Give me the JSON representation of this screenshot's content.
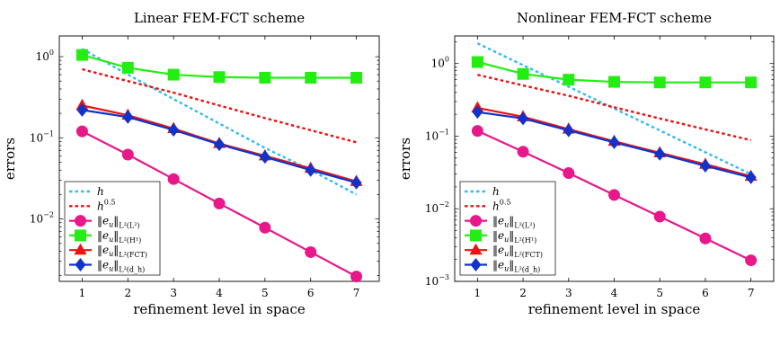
{
  "chart_data": [
    {
      "type": "line",
      "title": "Linear FEM-FCT scheme",
      "xlabel": "refinement level in space",
      "ylabel": "errors",
      "y_scale": "log",
      "xlim": [
        0.5,
        7.5
      ],
      "ylim": [
        0.0017,
        1.8
      ],
      "x_ticks": [
        "1",
        "2",
        "3",
        "4",
        "5",
        "6",
        "7"
      ],
      "y_ticks": [
        {
          "value": 1,
          "mantissa": "10",
          "exp": "0"
        },
        {
          "value": 0.1,
          "mantissa": "10",
          "exp": "−1"
        },
        {
          "value": 0.01,
          "mantissa": "10",
          "exp": "−2"
        }
      ],
      "grid": false,
      "legend_position": "bottom-left",
      "x": [
        1,
        2,
        3,
        4,
        5,
        6,
        7
      ],
      "series": [
        {
          "name": "h",
          "style": "dotted",
          "color": "#33bbee",
          "marker": "none",
          "values": [
            1.25,
            0.6,
            0.3,
            0.15,
            0.075,
            0.04,
            0.02
          ]
        },
        {
          "name": "h^0.5",
          "style": "dotted",
          "color": "#ee1111",
          "marker": "none",
          "values": [
            0.7,
            0.5,
            0.36,
            0.25,
            0.175,
            0.124,
            0.088
          ]
        },
        {
          "name": "‖e_u‖_L²(L²)",
          "style": "solid",
          "color": "#e8178a",
          "marker": "circle",
          "values": [
            0.12,
            0.062,
            0.031,
            0.0155,
            0.0078,
            0.0039,
            0.00195
          ]
        },
        {
          "name": "‖e_u‖_L²(H¹)",
          "style": "solid",
          "color": "#22ee11",
          "marker": "square",
          "values": [
            1.05,
            0.73,
            0.6,
            0.56,
            0.55,
            0.55,
            0.55
          ]
        },
        {
          "name": "‖e_u‖_L²(FCT)",
          "style": "solid",
          "color": "#ee1111",
          "marker": "triangle",
          "values": [
            0.25,
            0.19,
            0.13,
            0.085,
            0.06,
            0.042,
            0.029
          ]
        },
        {
          "name": "‖e_u‖_L²(d_h)",
          "style": "solid",
          "color": "#1133cc",
          "marker": "diamond",
          "values": [
            0.22,
            0.18,
            0.125,
            0.083,
            0.058,
            0.04,
            0.028
          ]
        }
      ]
    },
    {
      "type": "line",
      "title": "Nonlinear FEM-FCT scheme",
      "xlabel": "refinement level in space",
      "ylabel": "errors",
      "y_scale": "log",
      "xlim": [
        0.5,
        7.5
      ],
      "ylim": [
        0.001,
        2.4
      ],
      "x_ticks": [
        "1",
        "2",
        "3",
        "4",
        "5",
        "6",
        "7"
      ],
      "y_ticks": [
        {
          "value": 1,
          "mantissa": "10",
          "exp": "0"
        },
        {
          "value": 0.1,
          "mantissa": "10",
          "exp": "−1"
        },
        {
          "value": 0.01,
          "mantissa": "10",
          "exp": "−2"
        },
        {
          "value": 0.001,
          "mantissa": "10",
          "exp": "−3"
        }
      ],
      "grid": false,
      "legend_position": "bottom-left",
      "x": [
        1,
        2,
        3,
        4,
        5,
        6,
        7
      ],
      "series": [
        {
          "name": "h",
          "style": "dotted",
          "color": "#33bbee",
          "marker": "none",
          "values": [
            1.9,
            0.95,
            0.48,
            0.24,
            0.12,
            0.06,
            0.03
          ]
        },
        {
          "name": "h^0.5",
          "style": "dotted",
          "color": "#ee1111",
          "marker": "none",
          "values": [
            0.7,
            0.5,
            0.36,
            0.25,
            0.175,
            0.124,
            0.088
          ]
        },
        {
          "name": "‖e_u‖_L²(L²)",
          "style": "solid",
          "color": "#e8178a",
          "marker": "circle",
          "values": [
            0.118,
            0.061,
            0.031,
            0.0155,
            0.0078,
            0.0039,
            0.00195
          ]
        },
        {
          "name": "‖e_u‖_L²(H¹)",
          "style": "solid",
          "color": "#22ee11",
          "marker": "square",
          "values": [
            1.05,
            0.72,
            0.6,
            0.56,
            0.55,
            0.55,
            0.55
          ]
        },
        {
          "name": "‖e_u‖_L²(FCT)",
          "style": "solid",
          "color": "#ee1111",
          "marker": "triangle",
          "values": [
            0.245,
            0.185,
            0.125,
            0.085,
            0.059,
            0.041,
            0.028
          ]
        },
        {
          "name": "‖e_u‖_L²(d_h)",
          "style": "solid",
          "color": "#1133cc",
          "marker": "diamond",
          "values": [
            0.215,
            0.175,
            0.12,
            0.082,
            0.057,
            0.039,
            0.027
          ]
        }
      ]
    }
  ]
}
